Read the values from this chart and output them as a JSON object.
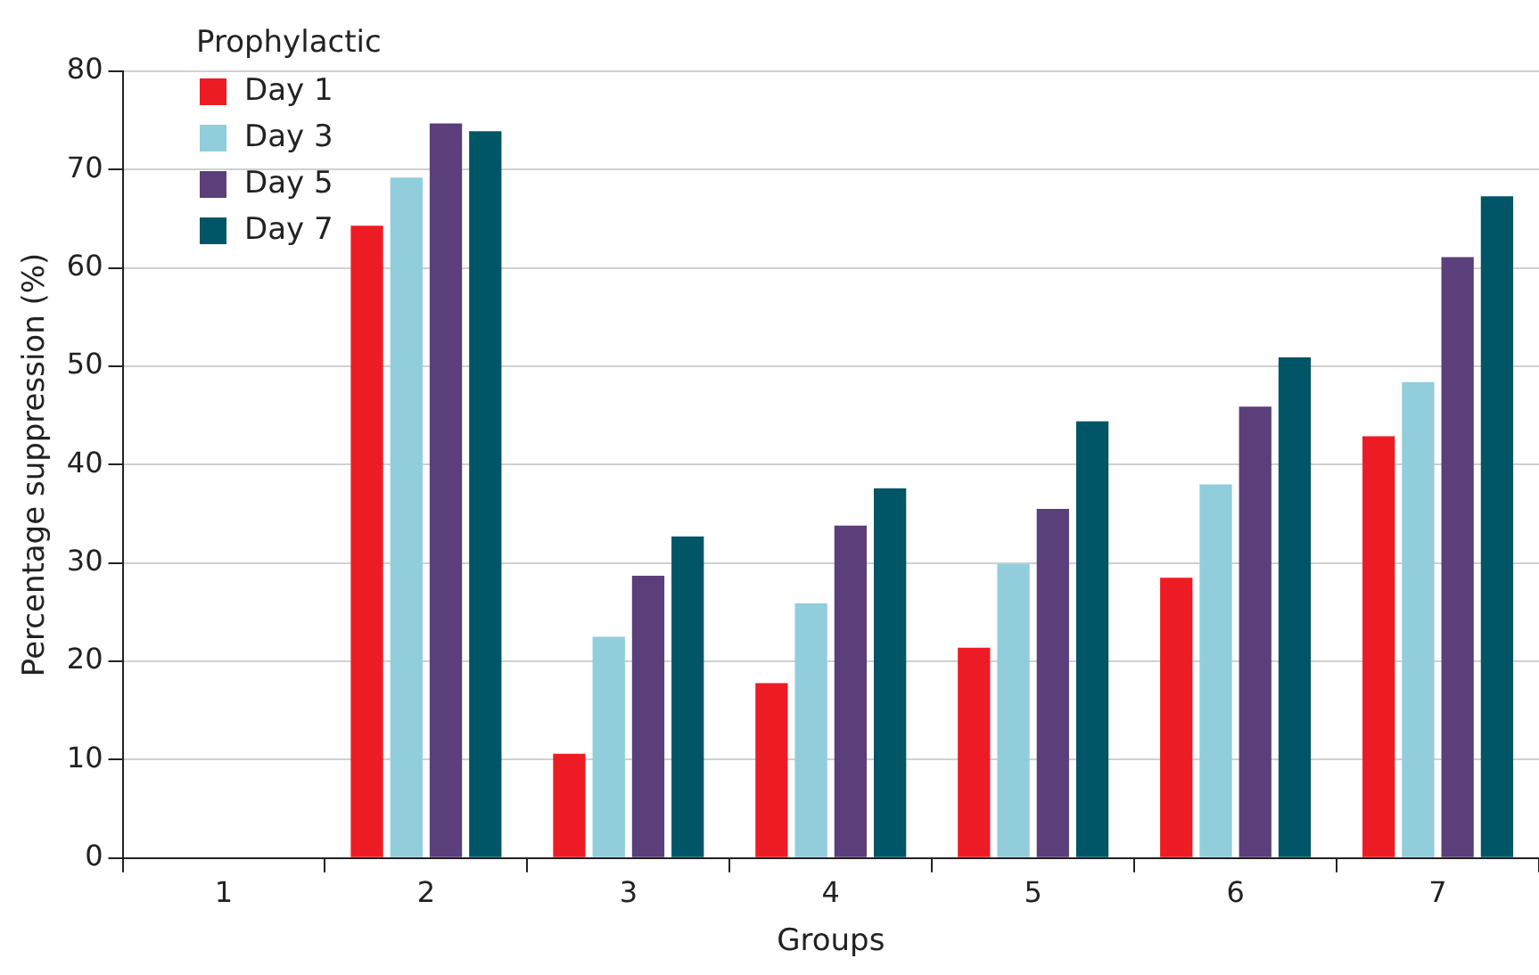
{
  "chart_data": {
    "type": "bar",
    "xlabel": "Groups",
    "ylabel": "Percentage suppression (%)",
    "legend_title": "Prophylactic",
    "legend": "top left",
    "categories": [
      "1",
      "2",
      "3",
      "4",
      "5",
      "6",
      "7"
    ],
    "series": [
      {
        "name": "Day 1",
        "color": "#ed1c24",
        "values": [
          0,
          64.3,
          10.6,
          17.8,
          21.4,
          28.5,
          42.9
        ]
      },
      {
        "name": "Day 3",
        "color": "#92cddc",
        "values": [
          0,
          69.2,
          22.5,
          25.9,
          29.9,
          38.0,
          48.4
        ]
      },
      {
        "name": "Day 5",
        "color": "#5b3f7a",
        "values": [
          0,
          74.7,
          28.7,
          33.8,
          35.5,
          45.9,
          61.1
        ]
      },
      {
        "name": "Day 7",
        "color": "#005566",
        "values": [
          0,
          73.9,
          32.7,
          37.6,
          44.4,
          50.9,
          67.3
        ]
      }
    ],
    "ylim": [
      0,
      80
    ],
    "yticks": [
      0,
      10,
      20,
      30,
      40,
      50,
      60,
      70,
      80
    ],
    "grid": "y"
  }
}
